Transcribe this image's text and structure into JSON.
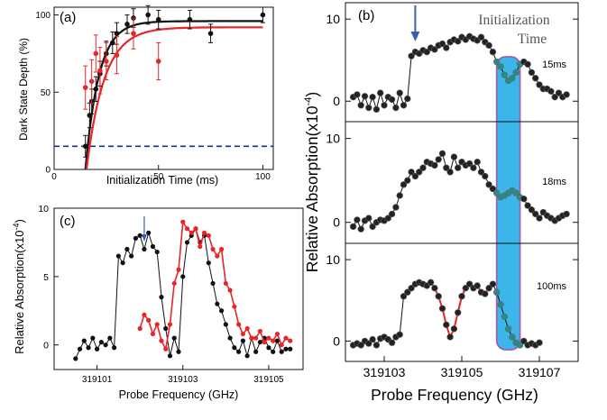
{
  "colors": {
    "black": "#111111",
    "red": "#e8262a",
    "navy": "#1a2f8a",
    "teal": "#2a8a8a",
    "highlight": "#3bb6ea",
    "highlight_edge": "#a060b0",
    "arrow": "#3a5fb0"
  },
  "chart_data": [
    {
      "panel": "(a)",
      "type": "scatter",
      "xlabel": "Initialization Time (ms)",
      "ylabel": "Dark State Depth (%)",
      "xlim": [
        0,
        105
      ],
      "ylim": [
        0,
        105
      ],
      "xticks": [
        "0",
        "50",
        "100"
      ],
      "yticks": [
        "0",
        "50",
        "100"
      ],
      "series": [
        {
          "color": "black",
          "points": [
            [
              15,
              15
            ],
            [
              17,
              35
            ],
            [
              18,
              44
            ],
            [
              20,
              52
            ],
            [
              22,
              62
            ],
            [
              25,
              75
            ],
            [
              28,
              82
            ],
            [
              30,
              88
            ],
            [
              35,
              94
            ],
            [
              38,
              98
            ],
            [
              45,
              100
            ],
            [
              50,
              97
            ],
            [
              65,
              97
            ],
            [
              75,
              88
            ],
            [
              100,
              100
            ]
          ],
          "err": [
            7,
            8,
            8,
            8,
            8,
            8,
            7,
            7,
            6,
            6,
            6,
            6,
            6,
            6,
            5
          ],
          "fit": {
            "a": 96,
            "t0": 15,
            "tau": 6.5
          }
        },
        {
          "color": "red",
          "points": [
            [
              15,
              53
            ],
            [
              18,
              57
            ],
            [
              20,
              75
            ],
            [
              22,
              64
            ],
            [
              25,
              70
            ],
            [
              30,
              74
            ],
            [
              38,
              88
            ],
            [
              50,
              70
            ]
          ],
          "err": [
            14,
            14,
            12,
            15,
            12,
            12,
            10,
            12
          ],
          "fit": {
            "a": 92,
            "t0": 15.5,
            "tau": 8.5
          }
        }
      ],
      "reference_line": {
        "y": 15,
        "style": "dashed",
        "color": "navy"
      }
    },
    {
      "panel": "(b)",
      "type": "line",
      "xlabel": "Probe Frequency (GHz)",
      "ylabel": "Relative Absorption(x10-4)",
      "ylabel_main": "Relative Absorption(x10",
      "ylabel_exp": "-4",
      "ylabel_close": ")",
      "xlim": [
        319102,
        319108
      ],
      "xticks": [
        "319103",
        "319105",
        "319107"
      ],
      "annotation": [
        "Initialization",
        "Time"
      ],
      "highlight_band": [
        319105.9,
        319106.5
      ],
      "arrow_x": 319103.8,
      "subpanels": [
        {
          "label": "15ms",
          "ylim": [
            -2.5,
            12
          ],
          "yticks": [
            "0",
            "10"
          ],
          "x": [
            319102.2,
            319102.3,
            319102.4,
            319102.5,
            319102.6,
            319102.7,
            319102.8,
            319102.9,
            319103.0,
            319103.1,
            319103.2,
            319103.3,
            319103.4,
            319103.5,
            319103.6,
            319103.7,
            319103.8,
            319103.9,
            319104.0,
            319104.1,
            319104.2,
            319104.3,
            319104.4,
            319104.5,
            319104.6,
            319104.7,
            319104.8,
            319104.9,
            319105.0,
            319105.1,
            319105.2,
            319105.3,
            319105.4,
            319105.5,
            319105.6,
            319105.7,
            319105.8,
            319105.9,
            319106.0,
            319106.1,
            319106.2,
            319106.3,
            319106.4,
            319106.5,
            319106.6,
            319106.7,
            319106.8,
            319106.9,
            319107.0,
            319107.1,
            319107.2,
            319107.3,
            319107.4,
            319107.5,
            319107.6,
            319107.7
          ],
          "y": [
            0.5,
            0.8,
            -0.5,
            0.6,
            -0.8,
            0.5,
            -1.0,
            1.0,
            -0.5,
            0.5,
            0.2,
            -0.8,
            1.0,
            -0.5,
            0.3,
            5.5,
            6.0,
            5.8,
            6.2,
            6.0,
            6.5,
            6.3,
            6.8,
            7.0,
            6.5,
            7.2,
            7.5,
            7.3,
            7.8,
            7.5,
            7.9,
            7.6,
            7.4,
            7.8,
            7.2,
            6.8,
            6.0,
            4.8,
            4.2,
            3.2,
            2.5,
            2.8,
            3.5,
            4.5,
            4.8,
            4.5,
            3.5,
            2.8,
            2.0,
            1.5,
            1.5,
            1.2,
            0.5,
            1.0,
            0.5,
            0.8
          ],
          "teal_range": [
            319105.9,
            319106.5
          ]
        },
        {
          "label": "18ms",
          "ylim": [
            -2.5,
            12
          ],
          "yticks": [
            "0",
            "10"
          ],
          "x": [
            319102.2,
            319102.3,
            319102.4,
            319102.5,
            319102.6,
            319102.7,
            319102.8,
            319102.9,
            319103.0,
            319103.1,
            319103.2,
            319103.3,
            319103.4,
            319103.5,
            319103.6,
            319103.7,
            319103.8,
            319103.9,
            319104.0,
            319104.1,
            319104.2,
            319104.3,
            319104.4,
            319104.5,
            319104.6,
            319104.7,
            319104.8,
            319104.9,
            319105.0,
            319105.1,
            319105.2,
            319105.3,
            319105.4,
            319105.5,
            319105.6,
            319105.7,
            319105.8,
            319105.9,
            319106.0,
            319106.1,
            319106.2,
            319106.3,
            319106.4,
            319106.5,
            319106.6,
            319106.7,
            319106.8,
            319106.9,
            319107.0,
            319107.1,
            319107.2,
            319107.3,
            319107.4,
            319107.5,
            319107.6,
            319107.7
          ],
          "y": [
            -0.5,
            0.3,
            -0.8,
            0.2,
            0.5,
            -0.5,
            0.0,
            0.3,
            0.2,
            0.5,
            1.0,
            1.8,
            3.2,
            4.5,
            5.0,
            6.0,
            5.5,
            6.0,
            6.5,
            7.2,
            7.0,
            6.8,
            7.5,
            8.2,
            6.5,
            6.0,
            7.8,
            6.5,
            7.2,
            6.8,
            7.0,
            6.5,
            7.2,
            6.0,
            5.5,
            4.5,
            4.0,
            3.5,
            3.0,
            3.2,
            3.5,
            3.8,
            3.5,
            3.0,
            2.8,
            2.0,
            1.5,
            1.0,
            0.5,
            1.2,
            0.8,
            0.5,
            0.2,
            0.5,
            0.8,
            1.0
          ],
          "teal_range": [
            319105.9,
            319106.5
          ]
        },
        {
          "label": "100ms",
          "ylim": [
            -2.5,
            12
          ],
          "yticks": [
            "0",
            "10"
          ],
          "x": [
            319102.2,
            319102.3,
            319102.4,
            319102.5,
            319102.6,
            319102.7,
            319102.8,
            319102.9,
            319103.0,
            319103.1,
            319103.2,
            319103.3,
            319103.4,
            319103.5,
            319103.6,
            319103.7,
            319103.8,
            319103.9,
            319104.0,
            319104.1,
            319104.2,
            319104.3,
            319104.4,
            319104.5,
            319104.6,
            319104.7,
            319104.8,
            319104.9,
            319105.0,
            319105.1,
            319105.2,
            319105.3,
            319105.4,
            319105.5,
            319105.6,
            319105.7,
            319105.8,
            319105.9,
            319106.0,
            319106.1,
            319106.2,
            319106.3,
            319106.4,
            319106.5,
            319106.6,
            319106.7,
            319106.8,
            319106.9,
            319107.0
          ],
          "y": [
            -0.5,
            -0.3,
            -0.5,
            0.0,
            -0.3,
            0.2,
            -0.5,
            0.3,
            0.5,
            0.2,
            -0.2,
            0.5,
            0.8,
            5.5,
            6.0,
            6.5,
            7.0,
            7.2,
            7.0,
            6.8,
            7.2,
            6.5,
            5.5,
            4.0,
            2.0,
            0.5,
            1.5,
            3.5,
            5.5,
            6.5,
            7.0,
            6.5,
            6.8,
            6.0,
            5.8,
            6.5,
            7.0,
            6.0,
            4.5,
            3.0,
            1.5,
            0.5,
            -0.2,
            -0.5,
            0.0,
            -0.5,
            -0.3,
            -0.5,
            -0.2
          ],
          "teal_range": [
            319105.9,
            319106.5
          ],
          "fit_segments": [
            [
              319103.7,
              319105.1
            ],
            [
              319104.9,
              319105.6
            ]
          ]
        }
      ]
    },
    {
      "panel": "(c)",
      "type": "line",
      "xlabel": "Probe Frequency (GHz)",
      "ylabel": "Relative Absorption(x10-4)",
      "ylabel_main": "Relative Absorption(x10",
      "ylabel_exp": "-4",
      "ylabel_close": ")",
      "xlim": [
        319100,
        319105.8
      ],
      "ylim": [
        -1.8,
        10
      ],
      "xticks": [
        "319101",
        "319103",
        "319105"
      ],
      "yticks": [
        "0",
        "5",
        "10"
      ],
      "arrow_x": 319102.1,
      "series": [
        {
          "color": "black",
          "x": [
            319100.5,
            319100.6,
            319100.7,
            319100.8,
            319100.9,
            319101.0,
            319101.1,
            319101.2,
            319101.3,
            319101.4,
            319101.5,
            319101.6,
            319101.7,
            319101.8,
            319101.9,
            319102.0,
            319102.1,
            319102.2,
            319102.3,
            319102.4,
            319102.5,
            319102.6,
            319102.7,
            319102.8,
            319102.9,
            319103.0,
            319103.1,
            319103.2,
            319103.3,
            319103.4,
            319103.5,
            319103.6,
            319103.7,
            319103.8,
            319103.9,
            319104.0,
            319104.1,
            319104.2,
            319104.3,
            319104.4,
            319104.5,
            319104.6,
            319104.7,
            319104.8,
            319104.9,
            319105.0,
            319105.1,
            319105.2,
            319105.3,
            319105.4,
            319105.5
          ],
          "y": [
            -1.0,
            -0.3,
            0.3,
            -0.2,
            0.5,
            -0.3,
            0.2,
            0.0,
            0.5,
            -0.2,
            6.5,
            6.0,
            7.0,
            6.5,
            7.8,
            8.0,
            7.0,
            8.2,
            7.2,
            6.8,
            3.5,
            1.2,
            -0.8,
            0.5,
            -0.5,
            5.0,
            7.5,
            8.0,
            8.5,
            7.5,
            8.0,
            6.0,
            4.5,
            3.0,
            2.5,
            1.5,
            0.5,
            -0.2,
            -0.5,
            0.3,
            -0.8,
            0.5,
            -0.5,
            0.2,
            0.5,
            -0.2,
            -0.5,
            0.3,
            -0.5,
            -0.3,
            -0.3
          ]
        },
        {
          "color": "red",
          "x": [
            319102.0,
            319102.1,
            319102.2,
            319102.3,
            319102.4,
            319102.5,
            319102.6,
            319102.7,
            319102.8,
            319102.9,
            319103.0,
            319103.1,
            319103.2,
            319103.3,
            319103.4,
            319103.5,
            319103.6,
            319103.7,
            319103.8,
            319103.9,
            319104.0,
            319104.1,
            319104.2,
            319104.3,
            319104.4,
            319104.5,
            319104.6,
            319104.7,
            319104.8,
            319104.9,
            319105.0,
            319105.1,
            319105.2,
            319105.3,
            319105.4,
            319105.5
          ],
          "y": [
            1.2,
            2.2,
            1.8,
            0.8,
            1.5,
            0.3,
            -0.3,
            1.5,
            4.5,
            5.5,
            9.0,
            8.5,
            8.2,
            8.5,
            7.2,
            8.2,
            8.0,
            7.0,
            6.5,
            7.0,
            4.5,
            4.0,
            2.8,
            1.5,
            0.8,
            1.2,
            0.5,
            0.5,
            1.0,
            0.2,
            0.5,
            0.3,
            0.8,
            0.0,
            0.5,
            0.3
          ]
        }
      ]
    }
  ]
}
